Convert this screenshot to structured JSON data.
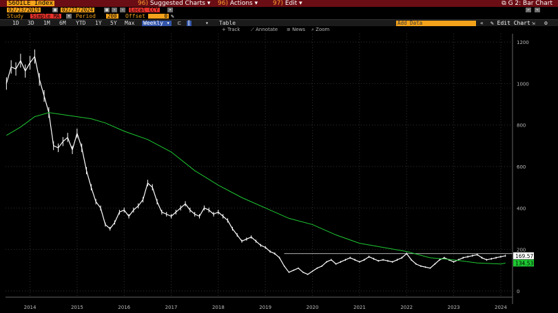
{
  "header": {
    "ticker": "S6OILE Index",
    "menus": [
      {
        "num": "96)",
        "label": "Suggested Charts"
      },
      {
        "num": "96)",
        "label": "Actions"
      },
      {
        "num": "97)",
        "label": "Edit"
      }
    ],
    "window_title": "G 2: Bar Chart"
  },
  "controls": {
    "start_date": "02/23/2019",
    "end_date": "02/23/2024",
    "currency": "Local CCY",
    "study_label": "Study",
    "study_value": "Simple MA",
    "period_label": "Period",
    "period_value": "200",
    "offset_label": "Offset",
    "offset_value": "0"
  },
  "range_bar": {
    "ranges": [
      "1D",
      "3D",
      "1M",
      "6M",
      "YTD",
      "1Y",
      "5Y",
      "Max"
    ],
    "frequency": "Weekly",
    "table_label": "Table",
    "add_data_label": "Add Data",
    "edit_chart_label": "Edit Chart"
  },
  "toolbar": {
    "track": "Track",
    "annotate": "Annotate",
    "news": "News",
    "zoom": "Zoom"
  },
  "chart_data": {
    "type": "line",
    "title": "",
    "ylim": [
      -30,
      1240
    ],
    "y_ticks": [
      0,
      200,
      400,
      600,
      800,
      1000,
      1200
    ],
    "x_tick_labels": [
      "2014",
      "2015",
      "2016",
      "2017",
      "2018",
      "2019",
      "2020",
      "2021",
      "2022",
      "2023",
      "2024"
    ],
    "x_tick_positions": [
      2014.0,
      2015.0,
      2016.0,
      2017.0,
      2018.0,
      2019.0,
      2020.0,
      2021.0,
      2022.0,
      2023.0,
      2024.0
    ],
    "xlim": [
      2013.48,
      2024.25
    ],
    "series": [
      {
        "name": "",
        "style": "bar",
        "color": "#ffffff",
        "x": [
          2013.5,
          2013.6,
          2013.7,
          2013.8,
          2013.9,
          2014.0,
          2014.1,
          2014.2,
          2014.3,
          2014.4,
          2014.5,
          2014.6,
          2014.7,
          2014.8,
          2014.9,
          2015.0,
          2015.1,
          2015.2,
          2015.3,
          2015.4,
          2015.5,
          2015.6,
          2015.7,
          2015.8,
          2015.9,
          2016.0,
          2016.1,
          2016.2,
          2016.3,
          2016.4,
          2016.5,
          2016.6,
          2016.7,
          2016.8,
          2016.9,
          2017.0,
          2017.1,
          2017.2,
          2017.3,
          2017.4,
          2017.5,
          2017.6,
          2017.7,
          2017.8,
          2017.9,
          2018.0,
          2018.1,
          2018.2,
          2018.3,
          2018.4,
          2018.5,
          2018.6,
          2018.7,
          2018.8,
          2018.9,
          2019.0,
          2019.1,
          2019.2,
          2019.3,
          2019.4,
          2019.5,
          2019.6,
          2019.7,
          2019.8,
          2019.9,
          2020.0,
          2020.1,
          2020.2,
          2020.3,
          2020.4,
          2020.5,
          2020.6,
          2020.7,
          2020.8,
          2020.9,
          2021.0,
          2021.1,
          2021.2,
          2021.3,
          2021.4,
          2021.5,
          2021.6,
          2021.7,
          2021.8,
          2021.9,
          2022.0,
          2022.1,
          2022.2,
          2022.3,
          2022.4,
          2022.5,
          2022.6,
          2022.7,
          2022.8,
          2022.9,
          2023.0,
          2023.1,
          2023.2,
          2023.3,
          2023.4,
          2023.5,
          2023.6,
          2023.7,
          2023.8,
          2023.9,
          2024.0,
          2024.1
        ],
        "y": [
          1000,
          1080,
          1070,
          1110,
          1060,
          1100,
          1130,
          1020,
          940,
          860,
          700,
          690,
          720,
          740,
          680,
          760,
          690,
          580,
          500,
          430,
          400,
          320,
          300,
          330,
          380,
          390,
          360,
          390,
          410,
          440,
          520,
          500,
          430,
          380,
          370,
          360,
          380,
          400,
          420,
          390,
          370,
          360,
          400,
          390,
          370,
          380,
          360,
          340,
          300,
          270,
          240,
          250,
          260,
          240,
          220,
          210,
          190,
          180,
          160,
          120,
          90,
          100,
          110,
          90,
          80,
          95,
          110,
          120,
          140,
          150,
          130,
          140,
          150,
          160,
          150,
          140,
          150,
          165,
          155,
          145,
          150,
          145,
          140,
          150,
          160,
          180,
          150,
          130,
          120,
          115,
          110,
          130,
          150,
          160,
          150,
          140,
          150,
          160,
          165,
          170,
          175,
          160,
          150,
          155,
          160,
          165,
          169.57
        ]
      },
      {
        "name": "",
        "style": "line",
        "color": "#1ec832",
        "x": [
          2013.5,
          2013.8,
          2014.1,
          2014.4,
          2014.7,
          2015.0,
          2015.3,
          2015.6,
          2016.0,
          2016.5,
          2017.0,
          2017.5,
          2018.0,
          2018.5,
          2019.0,
          2019.5,
          2020.0,
          2020.5,
          2021.0,
          2021.5,
          2022.0,
          2022.5,
          2023.0,
          2023.5,
          2024.0,
          2024.1
        ],
        "y": [
          750,
          790,
          840,
          860,
          850,
          840,
          830,
          810,
          770,
          730,
          670,
          580,
          510,
          450,
          400,
          350,
          320,
          270,
          230,
          210,
          190,
          160,
          150,
          135,
          130,
          134.53
        ]
      }
    ],
    "reference_line": {
      "y": 180,
      "color": "#cccccc"
    },
    "price_label": "169.57",
    "ma_label": "134.53"
  }
}
